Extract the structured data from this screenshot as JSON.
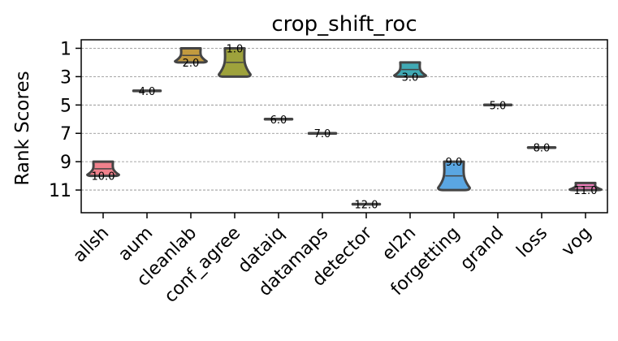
{
  "chart_data": {
    "type": "violin",
    "title": "crop_shift_roc",
    "xlabel": "",
    "ylabel": "Rank Scores",
    "ylim": [
      12.6,
      0.4
    ],
    "yticks": [
      1,
      3,
      5,
      7,
      9,
      11
    ],
    "grid": true,
    "categories": [
      "allsh",
      "aum",
      "cleanlab",
      "conf_agree",
      "dataiq",
      "datamaps",
      "detector",
      "el2n",
      "forgetting",
      "grand",
      "loss",
      "vog"
    ],
    "series": [
      {
        "name": "allsh",
        "median": 10.0,
        "label": "10.0",
        "min": 9.0,
        "max": 10.0,
        "color": "#f0818c"
      },
      {
        "name": "aum",
        "median": 4.0,
        "label": "4.0",
        "min": 4.0,
        "max": 4.0,
        "color": "#e08e56"
      },
      {
        "name": "cleanlab",
        "median": 2.0,
        "label": "2.0",
        "min": 1.0,
        "max": 2.0,
        "color": "#c29a3f"
      },
      {
        "name": "conf_agree",
        "median": 1.0,
        "label": "1.0",
        "min": 1.0,
        "max": 3.0,
        "color": "#9ea23c"
      },
      {
        "name": "dataiq",
        "median": 6.0,
        "label": "6.0",
        "min": 6.0,
        "max": 6.0,
        "color": "#6aae45"
      },
      {
        "name": "datamaps",
        "median": 7.0,
        "label": "7.0",
        "min": 7.0,
        "max": 7.0,
        "color": "#3fb07a"
      },
      {
        "name": "detector",
        "median": 12.0,
        "label": "12.0",
        "min": 12.0,
        "max": 12.0,
        "color": "#3eae9c"
      },
      {
        "name": "el2n",
        "median": 3.0,
        "label": "3.0",
        "min": 2.0,
        "max": 3.0,
        "color": "#40a9b4"
      },
      {
        "name": "forgetting",
        "median": 9.0,
        "label": "9.0",
        "min": 9.0,
        "max": 11.0,
        "color": "#5aa6e2"
      },
      {
        "name": "grand",
        "median": 5.0,
        "label": "5.0",
        "min": 5.0,
        "max": 5.0,
        "color": "#9a94e6"
      },
      {
        "name": "loss",
        "median": 8.0,
        "label": "8.0",
        "min": 8.0,
        "max": 8.0,
        "color": "#cf7fe4"
      },
      {
        "name": "vog",
        "median": 11.0,
        "label": "11.0",
        "min": 10.5,
        "max": 11.0,
        "color": "#ef7cba"
      }
    ]
  }
}
